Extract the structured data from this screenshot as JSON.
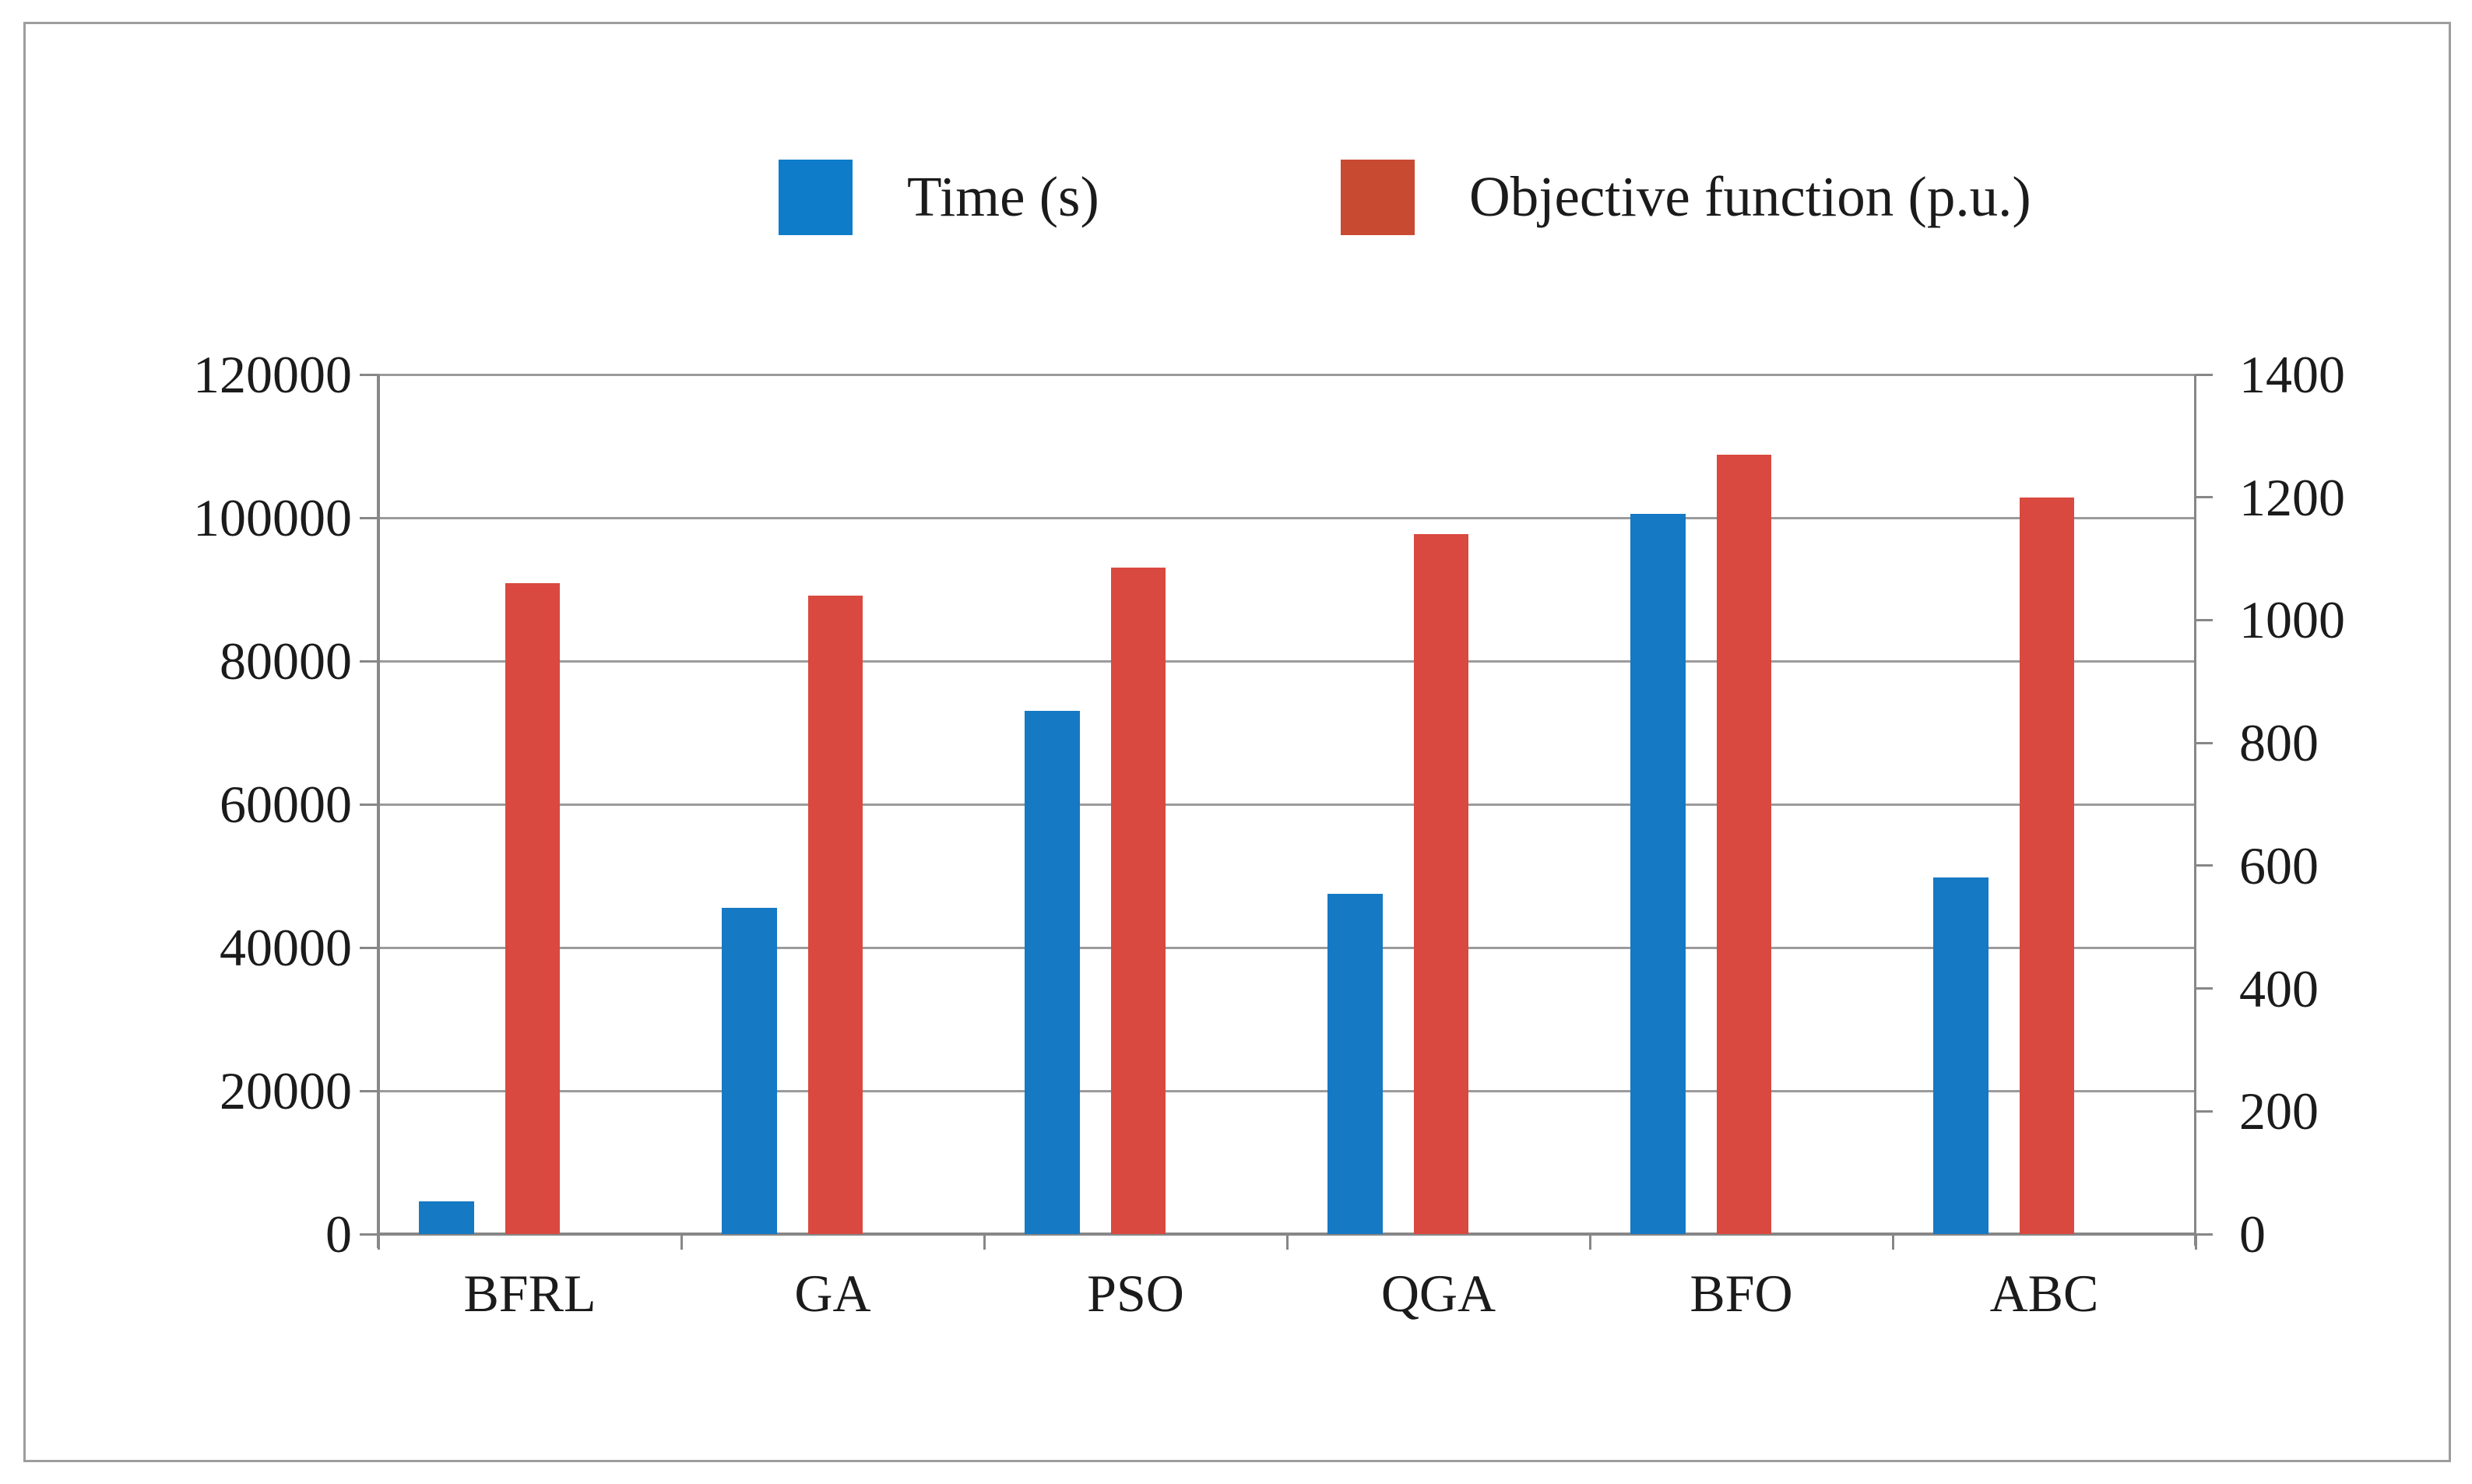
{
  "chart_data": {
    "type": "bar",
    "title": "",
    "categories": [
      "BFRL",
      "GA",
      "PSO",
      "QGA",
      "BFO",
      "ABC"
    ],
    "series": [
      {
        "name": "Time (s)",
        "axis": "left",
        "color": "#1579c4",
        "legend_swatch_color": "#0e7cc9",
        "values": [
          4600,
          45500,
          73000,
          47500,
          100500,
          49800
        ]
      },
      {
        "name": "Objective function (p.u.)",
        "axis": "right",
        "color": "#d9493f",
        "legend_swatch_color": "#c84a31",
        "values": [
          1060,
          1040,
          1085,
          1140,
          1270,
          1200
        ]
      }
    ],
    "left_axis": {
      "min": 0,
      "max": 120000,
      "step": 20000,
      "tick_labels": [
        "0",
        "20000",
        "40000",
        "60000",
        "80000",
        "100000",
        "120000"
      ]
    },
    "right_axis": {
      "min": 0,
      "max": 1400,
      "step": 200,
      "tick_labels": [
        "0",
        "200",
        "400",
        "600",
        "800",
        "1000",
        "1200",
        "1400"
      ]
    },
    "grid": "horizontal gridlines at left-axis ticks",
    "legend_position": "top-center"
  },
  "style_colors": {
    "gridline": "#9b9b9b",
    "axis_line": "#878787",
    "frame_border": "#9d9d9d",
    "text": "#1b1b1b",
    "background": "#ffffff"
  }
}
